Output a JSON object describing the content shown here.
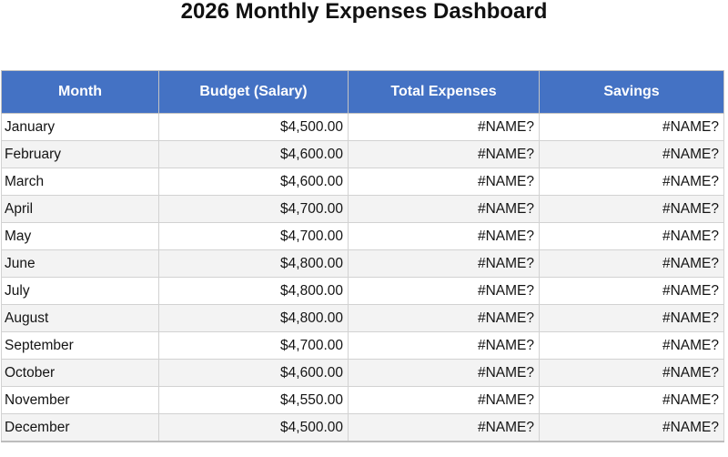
{
  "page": {
    "title": "2026 Monthly Expenses Dashboard"
  },
  "colors": {
    "header_bg": "#4472C4",
    "header_text": "#FFFFFF",
    "row_stripe": "#F3F3F3",
    "grid_border": "#D2D2D2"
  },
  "table": {
    "columns": [
      "Month",
      "Budget (Salary)",
      "Total Expenses",
      "Savings"
    ],
    "rows": [
      {
        "month": "January",
        "budget": "$4,500.00",
        "expenses": "#NAME?",
        "savings": "#NAME?"
      },
      {
        "month": "February",
        "budget": "$4,600.00",
        "expenses": "#NAME?",
        "savings": "#NAME?"
      },
      {
        "month": "March",
        "budget": "$4,600.00",
        "expenses": "#NAME?",
        "savings": "#NAME?"
      },
      {
        "month": "April",
        "budget": "$4,700.00",
        "expenses": "#NAME?",
        "savings": "#NAME?"
      },
      {
        "month": "May",
        "budget": "$4,700.00",
        "expenses": "#NAME?",
        "savings": "#NAME?"
      },
      {
        "month": "June",
        "budget": "$4,800.00",
        "expenses": "#NAME?",
        "savings": "#NAME?"
      },
      {
        "month": "July",
        "budget": "$4,800.00",
        "expenses": "#NAME?",
        "savings": "#NAME?"
      },
      {
        "month": "August",
        "budget": "$4,800.00",
        "expenses": "#NAME?",
        "savings": "#NAME?"
      },
      {
        "month": "September",
        "budget": "$4,700.00",
        "expenses": "#NAME?",
        "savings": "#NAME?"
      },
      {
        "month": "October",
        "budget": "$4,600.00",
        "expenses": "#NAME?",
        "savings": "#NAME?"
      },
      {
        "month": "November",
        "budget": "$4,550.00",
        "expenses": "#NAME?",
        "savings": "#NAME?"
      },
      {
        "month": "December",
        "budget": "$4,500.00",
        "expenses": "#NAME?",
        "savings": "#NAME?"
      }
    ]
  }
}
